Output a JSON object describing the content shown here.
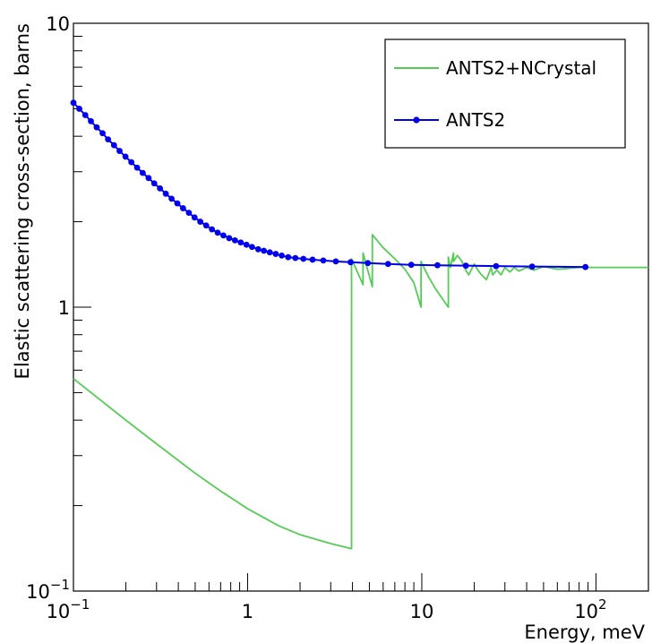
{
  "chart_data": {
    "type": "line",
    "title": "",
    "xlabel": "Energy, meV",
    "ylabel": "Elastic scattering cross-section, barns",
    "x_scale": "log",
    "y_scale": "log",
    "xlim": [
      0.1,
      200
    ],
    "ylim": [
      0.1,
      10
    ],
    "grid": false,
    "legend_position": "top-right",
    "x_tick_labels": [
      {
        "value": 0.1,
        "base": "10",
        "exp": "−1"
      },
      {
        "value": 1,
        "base": "1",
        "exp": ""
      },
      {
        "value": 10,
        "base": "10",
        "exp": ""
      },
      {
        "value": 100,
        "base": "10",
        "exp": "2"
      }
    ],
    "y_tick_labels": [
      {
        "value": 0.1,
        "base": "10",
        "exp": "−1"
      },
      {
        "value": 1,
        "base": "1",
        "exp": ""
      },
      {
        "value": 10,
        "base": "10",
        "exp": ""
      }
    ],
    "series": [
      {
        "name": "ANTS2+NCrystal",
        "color": "#55cc55",
        "marker": "none",
        "x": [
          0.1,
          0.15,
          0.2,
          0.3,
          0.5,
          0.7,
          1.0,
          1.5,
          2.0,
          3.0,
          3.95,
          3.95,
          4.6,
          4.6,
          5.2,
          5.2,
          6.0,
          7.0,
          8.0,
          9.0,
          9.9,
          9.9,
          10.4,
          11.0,
          12.0,
          13.0,
          14.2,
          14.2,
          14.6,
          15.2,
          15.2,
          16.0,
          17.0,
          18.0,
          18.6,
          20.0,
          21.0,
          22.0,
          23.5,
          25.0,
          25.5,
          27.0,
          28.5,
          30.0,
          32.0,
          34.0,
          36.0,
          40.0,
          44.0,
          50.0,
          60.0,
          80.0,
          100.0,
          200.0
        ],
        "y": [
          0.56,
          0.46,
          0.4,
          0.33,
          0.26,
          0.225,
          0.195,
          0.17,
          0.158,
          0.147,
          0.141,
          1.48,
          1.2,
          1.55,
          1.18,
          1.8,
          1.62,
          1.48,
          1.36,
          1.22,
          1.0,
          1.45,
          1.36,
          1.27,
          1.16,
          1.08,
          1.0,
          1.5,
          1.38,
          1.55,
          1.45,
          1.52,
          1.45,
          1.34,
          1.3,
          1.42,
          1.35,
          1.3,
          1.25,
          1.38,
          1.3,
          1.35,
          1.3,
          1.38,
          1.33,
          1.38,
          1.34,
          1.38,
          1.35,
          1.39,
          1.36,
          1.38,
          1.38,
          1.38
        ]
      },
      {
        "name": "ANTS2",
        "color": "#0000ee",
        "marker": "circle",
        "x": [
          0.1,
          0.108,
          0.117,
          0.126,
          0.136,
          0.147,
          0.158,
          0.171,
          0.184,
          0.199,
          0.215,
          0.232,
          0.25,
          0.27,
          0.291,
          0.314,
          0.339,
          0.366,
          0.395,
          0.426,
          0.46,
          0.496,
          0.535,
          0.578,
          0.624,
          0.673,
          0.726,
          0.784,
          0.846,
          0.913,
          0.985,
          1.06,
          1.15,
          1.24,
          1.34,
          1.45,
          1.57,
          1.71,
          1.88,
          2.09,
          2.36,
          2.72,
          3.21,
          3.9,
          4.9,
          6.4,
          8.7,
          12.3,
          17.9,
          26.7,
          43.0,
          87.0
        ],
        "y": [
          5.25,
          5.0,
          4.75,
          4.52,
          4.3,
          4.1,
          3.9,
          3.72,
          3.55,
          3.39,
          3.24,
          3.1,
          2.97,
          2.85,
          2.73,
          2.62,
          2.51,
          2.41,
          2.32,
          2.23,
          2.15,
          2.07,
          2.0,
          1.94,
          1.88,
          1.83,
          1.79,
          1.75,
          1.72,
          1.69,
          1.66,
          1.63,
          1.6,
          1.58,
          1.56,
          1.54,
          1.52,
          1.5,
          1.49,
          1.48,
          1.47,
          1.46,
          1.45,
          1.44,
          1.43,
          1.42,
          1.41,
          1.405,
          1.4,
          1.395,
          1.39,
          1.385
        ]
      }
    ]
  }
}
